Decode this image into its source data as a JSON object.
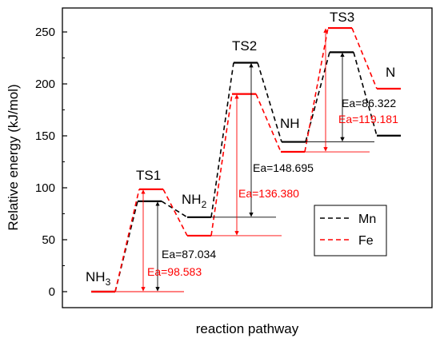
{
  "chart_data": {
    "type": "line",
    "title": "",
    "xlabel": "reaction pathway",
    "ylabel": "Relative energy (kJ/mol)",
    "ylim": [
      -20,
      265
    ],
    "yticks": [
      0,
      50,
      100,
      150,
      200,
      250
    ],
    "grid": false,
    "legend_position": "right-middle",
    "species": [
      {
        "id": "nh3",
        "base": "NH",
        "sub": "3"
      },
      {
        "id": "ts1",
        "base": "TS1",
        "sub": ""
      },
      {
        "id": "nh2",
        "base": "NH",
        "sub": "2"
      },
      {
        "id": "ts2",
        "base": "TS2",
        "sub": ""
      },
      {
        "id": "nh",
        "base": "NH",
        "sub": ""
      },
      {
        "id": "ts3",
        "base": "TS3",
        "sub": ""
      },
      {
        "id": "n",
        "base": "N",
        "sub": ""
      }
    ],
    "series": [
      {
        "name": "Mn",
        "color": "#000000",
        "values": [
          0,
          87.034,
          71.7,
          220.4,
          144.2,
          230.5,
          150.2
        ]
      },
      {
        "name": "Fe",
        "color": "#ff0000",
        "values": [
          0,
          98.583,
          53.9,
          190.3,
          134.6,
          253.8,
          195.4
        ]
      }
    ],
    "annotations": [
      {
        "series": "Mn",
        "text": "Ea=87.034",
        "color": "#000000"
      },
      {
        "series": "Fe",
        "text": "Ea=98.583",
        "color": "#ff0000"
      },
      {
        "series": "Mn",
        "text": "Ea=148.695",
        "color": "#000000"
      },
      {
        "series": "Fe",
        "text": "Ea=136.380",
        "color": "#ff0000"
      },
      {
        "series": "Mn",
        "text": "Ea=86.322",
        "color": "#000000"
      },
      {
        "series": "Fe",
        "text": "Ea=119.181",
        "color": "#ff0000"
      }
    ]
  }
}
